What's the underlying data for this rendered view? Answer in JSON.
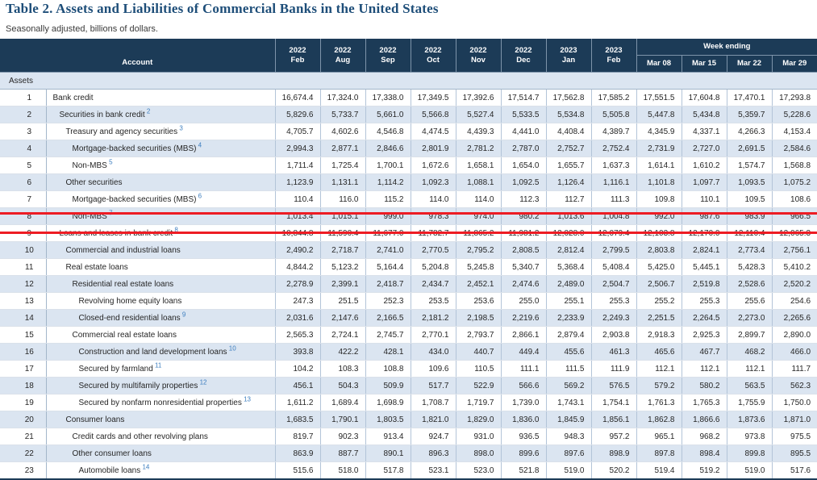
{
  "title": "Table 2. Assets and Liabilities of Commercial Banks in the United States",
  "subtitle": "Seasonally adjusted, billions of dollars.",
  "colors": {
    "header_bg": "#1c3b57",
    "stripe": "#dbe5f1",
    "title_blue": "#1e4e79",
    "footnote_blue": "#3d7ebf",
    "highlight_red": "#ed1c24"
  },
  "table": {
    "account_header": "Account",
    "week_ending_label": "Week ending",
    "period_columns": [
      {
        "year": "2022",
        "month": "Feb"
      },
      {
        "year": "2022",
        "month": "Aug"
      },
      {
        "year": "2022",
        "month": "Sep"
      },
      {
        "year": "2022",
        "month": "Oct"
      },
      {
        "year": "2022",
        "month": "Nov"
      },
      {
        "year": "2022",
        "month": "Dec"
      },
      {
        "year": "2023",
        "month": "Jan"
      },
      {
        "year": "2023",
        "month": "Feb"
      }
    ],
    "week_columns": [
      "Mar 08",
      "Mar 15",
      "Mar 22",
      "Mar 29"
    ],
    "section_label": "Assets",
    "rows": [
      {
        "num": "1",
        "label": "Bank credit",
        "footnote": "",
        "indent": 0,
        "highlight": false,
        "values": [
          "16,674.4",
          "17,324.0",
          "17,338.0",
          "17,349.5",
          "17,392.6",
          "17,514.7",
          "17,562.8",
          "17,585.2",
          "17,551.5",
          "17,604.8",
          "17,470.1",
          "17,293.8"
        ]
      },
      {
        "num": "2",
        "label": "Securities in bank credit",
        "footnote": "2",
        "indent": 1,
        "highlight": false,
        "values": [
          "5,829.6",
          "5,733.7",
          "5,661.0",
          "5,566.8",
          "5,527.4",
          "5,533.5",
          "5,534.8",
          "5,505.8",
          "5,447.8",
          "5,434.8",
          "5,359.7",
          "5,228.6"
        ]
      },
      {
        "num": "3",
        "label": "Treasury and agency securities",
        "footnote": "3",
        "indent": 2,
        "highlight": false,
        "values": [
          "4,705.7",
          "4,602.6",
          "4,546.8",
          "4,474.5",
          "4,439.3",
          "4,441.0",
          "4,408.4",
          "4,389.7",
          "4,345.9",
          "4,337.1",
          "4,266.3",
          "4,153.4"
        ]
      },
      {
        "num": "4",
        "label": "Mortgage-backed securities (MBS)",
        "footnote": "4",
        "indent": 3,
        "highlight": false,
        "values": [
          "2,994.3",
          "2,877.1",
          "2,846.6",
          "2,801.9",
          "2,781.2",
          "2,787.0",
          "2,752.7",
          "2,752.4",
          "2,731.9",
          "2,727.0",
          "2,691.5",
          "2,584.6"
        ]
      },
      {
        "num": "5",
        "label": "Non-MBS",
        "footnote": "5",
        "indent": 3,
        "highlight": false,
        "values": [
          "1,711.4",
          "1,725.4",
          "1,700.1",
          "1,672.6",
          "1,658.1",
          "1,654.0",
          "1,655.7",
          "1,637.3",
          "1,614.1",
          "1,610.2",
          "1,574.7",
          "1,568.8"
        ]
      },
      {
        "num": "6",
        "label": "Other securities",
        "footnote": "",
        "indent": 2,
        "highlight": false,
        "values": [
          "1,123.9",
          "1,131.1",
          "1,114.2",
          "1,092.3",
          "1,088.1",
          "1,092.5",
          "1,126.4",
          "1,116.1",
          "1,101.8",
          "1,097.7",
          "1,093.5",
          "1,075.2"
        ]
      },
      {
        "num": "7",
        "label": "Mortgage-backed securities (MBS)",
        "footnote": "6",
        "indent": 3,
        "highlight": false,
        "values": [
          "110.4",
          "116.0",
          "115.2",
          "114.0",
          "114.0",
          "112.3",
          "112.7",
          "111.3",
          "109.8",
          "110.1",
          "109.5",
          "108.6"
        ]
      },
      {
        "num": "8",
        "label": "Non-MBS",
        "footnote": "7",
        "indent": 3,
        "highlight": false,
        "values": [
          "1,013.4",
          "1,015.1",
          "999.0",
          "978.3",
          "974.0",
          "980.2",
          "1,013.6",
          "1,004.8",
          "992.0",
          "987.6",
          "983.9",
          "966.5"
        ]
      },
      {
        "num": "9",
        "label": "Loans and leases in bank credit",
        "footnote": "8",
        "indent": 1,
        "highlight": true,
        "values": [
          "10,844.8",
          "11,590.4",
          "11,677.0",
          "11,782.7",
          "11,865.2",
          "11,981.2",
          "12,028.0",
          "12,079.4",
          "12,103.8",
          "12,170.0",
          "12,110.4",
          "12,065.3"
        ]
      },
      {
        "num": "10",
        "label": "Commercial and industrial loans",
        "footnote": "",
        "indent": 2,
        "highlight": false,
        "values": [
          "2,490.2",
          "2,718.7",
          "2,741.0",
          "2,770.5",
          "2,795.2",
          "2,808.5",
          "2,812.4",
          "2,799.5",
          "2,803.8",
          "2,824.1",
          "2,773.4",
          "2,756.1"
        ]
      },
      {
        "num": "11",
        "label": "Real estate loans",
        "footnote": "",
        "indent": 2,
        "highlight": false,
        "values": [
          "4,844.2",
          "5,123.2",
          "5,164.4",
          "5,204.8",
          "5,245.8",
          "5,340.7",
          "5,368.4",
          "5,408.4",
          "5,425.0",
          "5,445.1",
          "5,428.3",
          "5,410.2"
        ]
      },
      {
        "num": "12",
        "label": "Residential real estate loans",
        "footnote": "",
        "indent": 3,
        "highlight": false,
        "values": [
          "2,278.9",
          "2,399.1",
          "2,418.7",
          "2,434.7",
          "2,452.1",
          "2,474.6",
          "2,489.0",
          "2,504.7",
          "2,506.7",
          "2,519.8",
          "2,528.6",
          "2,520.2"
        ]
      },
      {
        "num": "13",
        "label": "Revolving home equity loans",
        "footnote": "",
        "indent": 4,
        "highlight": false,
        "values": [
          "247.3",
          "251.5",
          "252.3",
          "253.5",
          "253.6",
          "255.0",
          "255.1",
          "255.3",
          "255.2",
          "255.3",
          "255.6",
          "254.6"
        ]
      },
      {
        "num": "14",
        "label": "Closed-end residential loans",
        "footnote": "9",
        "indent": 4,
        "highlight": false,
        "values": [
          "2,031.6",
          "2,147.6",
          "2,166.5",
          "2,181.2",
          "2,198.5",
          "2,219.6",
          "2,233.9",
          "2,249.3",
          "2,251.5",
          "2,264.5",
          "2,273.0",
          "2,265.6"
        ]
      },
      {
        "num": "15",
        "label": "Commercial real estate loans",
        "footnote": "",
        "indent": 3,
        "highlight": false,
        "values": [
          "2,565.3",
          "2,724.1",
          "2,745.7",
          "2,770.1",
          "2,793.7",
          "2,866.1",
          "2,879.4",
          "2,903.8",
          "2,918.3",
          "2,925.3",
          "2,899.7",
          "2,890.0"
        ]
      },
      {
        "num": "16",
        "label": "Construction and land development loans",
        "footnote": "10",
        "indent": 4,
        "highlight": false,
        "values": [
          "393.8",
          "422.2",
          "428.1",
          "434.0",
          "440.7",
          "449.4",
          "455.6",
          "461.3",
          "465.6",
          "467.7",
          "468.2",
          "466.0"
        ]
      },
      {
        "num": "17",
        "label": "Secured by farmland",
        "footnote": "11",
        "indent": 4,
        "highlight": false,
        "values": [
          "104.2",
          "108.3",
          "108.8",
          "109.6",
          "110.5",
          "111.1",
          "111.5",
          "111.9",
          "112.1",
          "112.1",
          "112.1",
          "111.7"
        ]
      },
      {
        "num": "18",
        "label": "Secured by multifamily properties",
        "footnote": "12",
        "indent": 4,
        "highlight": false,
        "values": [
          "456.1",
          "504.3",
          "509.9",
          "517.7",
          "522.9",
          "566.6",
          "569.2",
          "576.5",
          "579.2",
          "580.2",
          "563.5",
          "562.3"
        ]
      },
      {
        "num": "19",
        "label": "Secured by nonfarm nonresidential properties",
        "footnote": "13",
        "indent": 4,
        "highlight": false,
        "values": [
          "1,611.2",
          "1,689.4",
          "1,698.9",
          "1,708.7",
          "1,719.7",
          "1,739.0",
          "1,743.1",
          "1,754.1",
          "1,761.3",
          "1,765.3",
          "1,755.9",
          "1,750.0"
        ]
      },
      {
        "num": "20",
        "label": "Consumer loans",
        "footnote": "",
        "indent": 2,
        "highlight": false,
        "values": [
          "1,683.5",
          "1,790.1",
          "1,803.5",
          "1,821.0",
          "1,829.0",
          "1,836.0",
          "1,845.9",
          "1,856.1",
          "1,862.8",
          "1,866.6",
          "1,873.6",
          "1,871.0"
        ]
      },
      {
        "num": "21",
        "label": "Credit cards and other revolving plans",
        "footnote": "",
        "indent": 3,
        "highlight": false,
        "values": [
          "819.7",
          "902.3",
          "913.4",
          "924.7",
          "931.0",
          "936.5",
          "948.3",
          "957.2",
          "965.1",
          "968.2",
          "973.8",
          "975.5"
        ]
      },
      {
        "num": "22",
        "label": "Other consumer loans",
        "footnote": "",
        "indent": 3,
        "highlight": false,
        "values": [
          "863.9",
          "887.7",
          "890.1",
          "896.3",
          "898.0",
          "899.6",
          "897.6",
          "898.9",
          "897.8",
          "898.4",
          "899.8",
          "895.5"
        ]
      },
      {
        "num": "23",
        "label": "Automobile loans",
        "footnote": "14",
        "indent": 4,
        "highlight": false,
        "values": [
          "515.6",
          "518.0",
          "517.8",
          "523.1",
          "523.0",
          "521.8",
          "519.0",
          "520.2",
          "519.4",
          "519.2",
          "519.0",
          "517.6"
        ]
      }
    ]
  }
}
